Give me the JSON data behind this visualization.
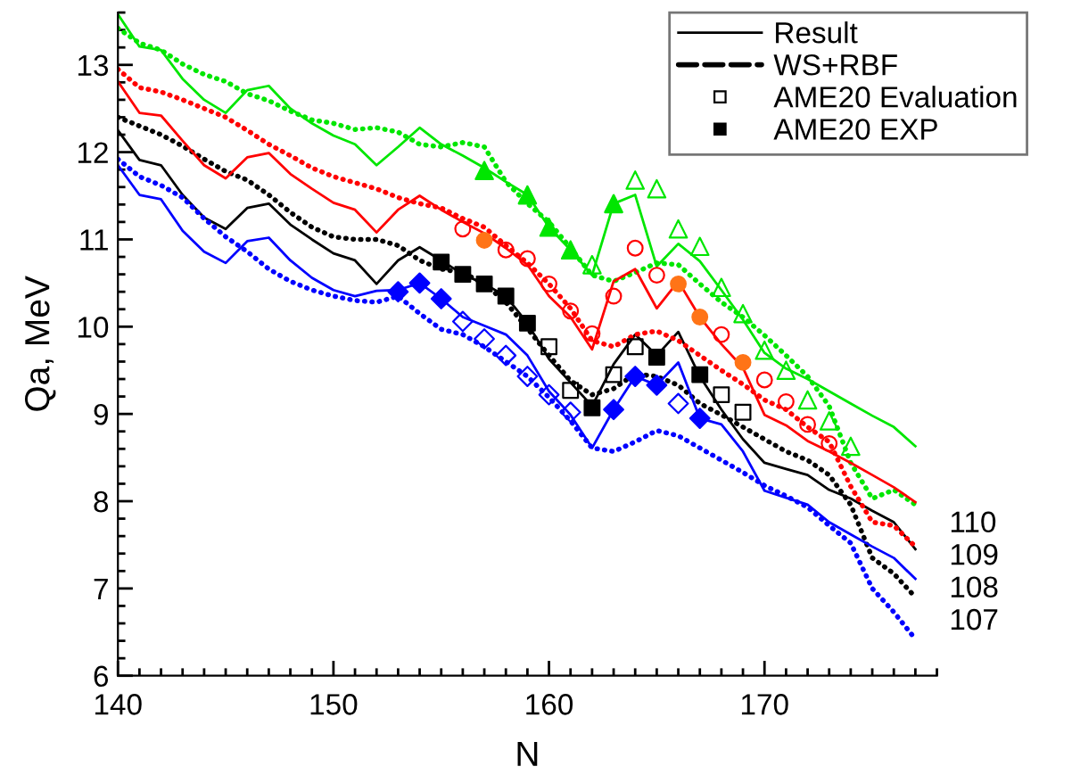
{
  "chart_data": {
    "type": "line",
    "xlabel": "N",
    "ylabel": "Qa, MeV",
    "xlim": [
      140,
      178
    ],
    "ylim": [
      6,
      13.6
    ],
    "xticks": [
      140,
      {
        "value": 141,
        "label": null
      },
      {
        "value": 142,
        "label": null
      },
      {
        "value": 143,
        "label": null
      },
      {
        "value": 144,
        "label": null
      },
      {
        "value": 145,
        "label": null
      },
      {
        "value": 146,
        "label": null
      },
      {
        "value": 147,
        "label": null
      },
      {
        "value": 148,
        "label": null
      },
      {
        "value": 149,
        "label": null
      },
      150,
      {
        "value": 151,
        "label": null
      },
      {
        "value": 152,
        "label": null
      },
      {
        "value": 153,
        "label": null
      },
      {
        "value": 154,
        "label": null
      },
      {
        "value": 155,
        "label": null
      },
      {
        "value": 156,
        "label": null
      },
      {
        "value": 157,
        "label": null
      },
      {
        "value": 158,
        "label": null
      },
      {
        "value": 159,
        "label": null
      },
      160,
      {
        "value": 161,
        "label": null
      },
      {
        "value": 162,
        "label": null
      },
      {
        "value": 163,
        "label": null
      },
      {
        "value": 164,
        "label": null
      },
      {
        "value": 165,
        "label": null
      },
      {
        "value": 166,
        "label": null
      },
      {
        "value": 167,
        "label": null
      },
      {
        "value": 168,
        "label": null
      },
      {
        "value": 169,
        "label": null
      },
      170,
      {
        "value": 171,
        "label": null
      },
      {
        "value": 172,
        "label": null
      },
      {
        "value": 173,
        "label": null
      },
      {
        "value": 174,
        "label": null
      },
      {
        "value": 175,
        "label": null
      },
      {
        "value": 176,
        "label": null
      },
      {
        "value": 177,
        "label": null
      },
      {
        "value": 178,
        "label": null
      }
    ],
    "yticks": [
      6,
      {
        "value": 6.2,
        "label": null
      },
      {
        "value": 6.4,
        "label": null
      },
      {
        "value": 6.6,
        "label": null
      },
      {
        "value": 6.8,
        "label": null
      },
      7,
      {
        "value": 7.2,
        "label": null
      },
      {
        "value": 7.4,
        "label": null
      },
      {
        "value": 7.6,
        "label": null
      },
      {
        "value": 7.8,
        "label": null
      },
      8,
      {
        "value": 8.2,
        "label": null
      },
      {
        "value": 8.4,
        "label": null
      },
      {
        "value": 8.6,
        "label": null
      },
      {
        "value": 8.8,
        "label": null
      },
      9,
      {
        "value": 9.2,
        "label": null
      },
      {
        "value": 9.4,
        "label": null
      },
      {
        "value": 9.6,
        "label": null
      },
      {
        "value": 9.8,
        "label": null
      },
      10,
      {
        "value": 10.2,
        "label": null
      },
      {
        "value": 10.4,
        "label": null
      },
      {
        "value": 10.6,
        "label": null
      },
      {
        "value": 10.8,
        "label": null
      },
      11,
      {
        "value": 11.2,
        "label": null
      },
      {
        "value": 11.4,
        "label": null
      },
      {
        "value": 11.6,
        "label": null
      },
      {
        "value": 11.8,
        "label": null
      },
      12,
      {
        "value": 12.2,
        "label": null
      },
      {
        "value": 12.4,
        "label": null
      },
      {
        "value": 12.6,
        "label": null
      },
      {
        "value": 12.8,
        "label": null
      },
      13,
      {
        "value": 13.2,
        "label": null
      },
      {
        "value": 13.4,
        "label": null
      },
      {
        "value": 13.6,
        "label": null
      }
    ],
    "grid": false,
    "legend": "top right",
    "series": [
      {
        "name": "Result",
        "line_style": "solid",
        "marker": "none",
        "color": "#000000",
        "x": [
          140,
          141,
          142,
          143,
          144,
          145,
          146,
          147,
          148,
          149,
          150,
          151,
          152,
          153,
          154,
          155,
          156,
          157,
          158,
          159,
          160,
          161,
          162,
          163,
          164,
          165,
          166,
          167,
          168,
          169,
          170,
          171,
          172,
          173,
          174,
          175,
          176,
          177
        ],
        "values": [
          12.25,
          11.91,
          11.85,
          11.51,
          11.25,
          11.12,
          11.36,
          11.41,
          11.17,
          11.0,
          10.84,
          10.76,
          10.49,
          10.76,
          10.91,
          10.76,
          10.6,
          10.49,
          10.35,
          10.04,
          9.63,
          9.36,
          9.09,
          9.57,
          9.91,
          9.67,
          9.94,
          9.43,
          9.05,
          8.71,
          8.44,
          8.37,
          8.3,
          8.13,
          8.03,
          7.89,
          7.76,
          7.45
        ]
      },
      {
        "name": "WS+RBF",
        "line_style": "dotted",
        "marker": "none",
        "color": "#000000",
        "x": [
          140,
          141,
          142,
          143,
          144,
          145,
          146,
          147,
          148,
          149,
          150,
          151,
          152,
          153,
          154,
          155,
          156,
          157,
          158,
          159,
          160,
          161,
          162,
          163,
          164,
          165,
          166,
          167,
          168,
          169,
          170,
          171,
          172,
          173,
          174,
          175,
          176,
          177
        ],
        "values": [
          12.4,
          12.3,
          12.2,
          12.07,
          11.92,
          11.78,
          11.68,
          11.51,
          11.31,
          11.14,
          11.03,
          11.0,
          11.0,
          10.93,
          10.76,
          10.66,
          10.62,
          10.49,
          10.28,
          9.98,
          9.67,
          9.38,
          9.22,
          9.29,
          9.46,
          9.43,
          9.33,
          9.12,
          8.99,
          8.85,
          8.71,
          8.57,
          8.47,
          8.3,
          7.96,
          7.35,
          7.17,
          6.9
        ]
      },
      {
        "name": "AME20 Evaluation",
        "type": "scatter",
        "marker": "square",
        "color": "#000000",
        "x": [
          160,
          161,
          163,
          164,
          168,
          169
        ],
        "values": [
          9.77,
          9.27,
          9.45,
          9.77,
          9.22,
          9.02
        ]
      },
      {
        "name": "AME20 EXP",
        "type": "scatter",
        "marker": "square",
        "color": "#000000",
        "x": [
          155,
          156,
          157,
          158,
          159,
          162,
          165,
          167
        ],
        "values": [
          10.74,
          10.6,
          10.49,
          10.35,
          10.04,
          9.07,
          9.65,
          9.45
        ]
      },
      {
        "line_style": "solid",
        "marker": "none",
        "color": "#00e600",
        "x": [
          140,
          141,
          142,
          143,
          144,
          145,
          146,
          147,
          148,
          149,
          150,
          151,
          152,
          153,
          154,
          155,
          156,
          157,
          158,
          159,
          160,
          161,
          162,
          163,
          164,
          165,
          166,
          167,
          168,
          169,
          170,
          171,
          172,
          173,
          174,
          175,
          176,
          177
        ],
        "values": [
          13.58,
          13.21,
          13.17,
          12.84,
          12.6,
          12.45,
          12.71,
          12.76,
          12.5,
          12.33,
          12.19,
          12.09,
          11.85,
          12.06,
          12.28,
          12.09,
          11.96,
          11.82,
          11.66,
          11.51,
          11.14,
          10.88,
          10.59,
          11.41,
          11.51,
          10.69,
          10.95,
          10.75,
          10.42,
          10.08,
          9.7,
          9.52,
          9.4,
          9.26,
          9.12,
          8.98,
          8.85,
          8.63
        ]
      },
      {
        "line_style": "dotted",
        "marker": "none",
        "color": "#00e600",
        "x": [
          140,
          141,
          142,
          143,
          144,
          145,
          146,
          147,
          148,
          149,
          150,
          151,
          152,
          153,
          154,
          155,
          156,
          157,
          158,
          159,
          160,
          161,
          162,
          163,
          164,
          165,
          166,
          167,
          168,
          169,
          170,
          171,
          172,
          173,
          174,
          175,
          176,
          177
        ],
        "values": [
          13.42,
          13.25,
          13.17,
          13.01,
          12.89,
          12.81,
          12.67,
          12.59,
          12.47,
          12.37,
          12.33,
          12.26,
          12.28,
          12.23,
          12.09,
          12.06,
          12.11,
          12.06,
          11.66,
          11.41,
          11.2,
          10.9,
          10.59,
          10.52,
          10.62,
          10.73,
          10.71,
          10.49,
          10.28,
          10.11,
          9.9,
          9.67,
          9.43,
          9.09,
          8.44,
          8.03,
          8.13,
          7.96
        ]
      },
      {
        "type": "scatter",
        "marker": "triangle",
        "color": "#00e600",
        "x": [
          162,
          164,
          165,
          166,
          167,
          168,
          169,
          170,
          171,
          172,
          173,
          174
        ],
        "values": [
          10.71,
          11.68,
          11.58,
          11.12,
          10.92,
          10.45,
          10.15,
          9.73,
          9.5,
          9.16,
          8.92,
          8.63
        ]
      },
      {
        "type": "scatter",
        "marker": "triangle",
        "color": "#00e600",
        "x": [
          157,
          159,
          160,
          161,
          163
        ],
        "values": [
          11.79,
          11.51,
          11.14,
          10.88,
          11.41
        ]
      },
      {
        "line_style": "solid",
        "marker": "none",
        "color": "#ff0000",
        "x": [
          140,
          141,
          142,
          143,
          144,
          145,
          146,
          147,
          148,
          149,
          150,
          151,
          152,
          153,
          154,
          155,
          156,
          157,
          158,
          159,
          160,
          161,
          162,
          163,
          164,
          165,
          166,
          167,
          168,
          169,
          170,
          171,
          172,
          173,
          174,
          175,
          176,
          177
        ],
        "values": [
          12.81,
          12.45,
          12.42,
          12.13,
          11.85,
          11.7,
          11.94,
          11.99,
          11.75,
          11.58,
          11.42,
          11.34,
          11.08,
          11.34,
          11.5,
          11.34,
          11.2,
          11.07,
          10.9,
          10.71,
          10.35,
          10.11,
          9.74,
          10.52,
          10.66,
          10.21,
          10.52,
          10.11,
          9.8,
          9.53,
          8.99,
          8.87,
          8.69,
          8.57,
          8.44,
          8.3,
          8.16,
          7.99
        ]
      },
      {
        "line_style": "dotted",
        "marker": "none",
        "color": "#ff0000",
        "x": [
          140,
          141,
          142,
          143,
          144,
          145,
          146,
          147,
          148,
          149,
          150,
          151,
          152,
          153,
          154,
          155,
          156,
          157,
          158,
          159,
          160,
          161,
          162,
          163,
          164,
          165,
          166,
          167,
          168,
          169,
          170,
          171,
          172,
          173,
          174,
          175,
          176,
          177
        ],
        "values": [
          12.95,
          12.74,
          12.69,
          12.6,
          12.5,
          12.4,
          12.25,
          12.09,
          11.96,
          11.82,
          11.72,
          11.65,
          11.58,
          11.48,
          11.41,
          11.36,
          11.24,
          11.14,
          10.93,
          10.73,
          10.49,
          10.21,
          9.84,
          9.77,
          9.91,
          9.95,
          9.84,
          9.67,
          9.5,
          9.34,
          9.16,
          9.05,
          8.85,
          8.68,
          8.17,
          7.76,
          7.72,
          7.48
        ]
      },
      {
        "type": "scatter",
        "marker": "circle",
        "color": "#ff0000",
        "x": [
          156,
          158,
          159,
          160,
          161,
          162,
          163,
          164,
          165,
          168,
          170,
          171,
          172,
          173
        ],
        "values": [
          11.12,
          10.88,
          10.78,
          10.49,
          10.18,
          9.92,
          10.35,
          10.9,
          10.59,
          9.91,
          9.39,
          9.14,
          8.88,
          8.66
        ]
      },
      {
        "type": "scatter",
        "marker": "circle",
        "color": "#ff7417",
        "x": [
          157,
          166,
          167,
          169
        ],
        "values": [
          10.99,
          10.49,
          10.11,
          9.59
        ]
      },
      {
        "line_style": "solid",
        "marker": "none",
        "color": "#0000ff",
        "x": [
          140,
          141,
          142,
          143,
          144,
          145,
          146,
          147,
          148,
          149,
          150,
          151,
          152,
          153,
          154,
          155,
          156,
          157,
          158,
          159,
          160,
          161,
          162,
          163,
          164,
          165,
          166,
          167,
          168,
          169,
          170,
          171,
          172,
          173,
          174,
          175,
          176,
          177
        ],
        "values": [
          11.85,
          11.51,
          11.46,
          11.1,
          10.86,
          10.73,
          10.98,
          11.02,
          10.76,
          10.56,
          10.42,
          10.35,
          10.41,
          10.42,
          10.5,
          10.32,
          10.11,
          10.01,
          9.91,
          9.67,
          9.26,
          8.99,
          8.61,
          9.05,
          9.43,
          9.33,
          9.59,
          8.95,
          8.88,
          8.57,
          8.12,
          8.04,
          7.96,
          7.76,
          7.62,
          7.48,
          7.35,
          7.11
        ]
      },
      {
        "line_style": "dotted",
        "marker": "none",
        "color": "#0000ff",
        "x": [
          140,
          141,
          142,
          143,
          144,
          145,
          146,
          147,
          148,
          149,
          150,
          151,
          152,
          153,
          154,
          155,
          156,
          157,
          158,
          159,
          160,
          161,
          162,
          163,
          164,
          165,
          166,
          167,
          168,
          169,
          170,
          171,
          172,
          173,
          174,
          175,
          176,
          177
        ],
        "values": [
          11.92,
          11.72,
          11.62,
          11.48,
          11.24,
          11.03,
          10.86,
          10.66,
          10.52,
          10.42,
          10.35,
          10.3,
          10.28,
          10.35,
          10.15,
          9.97,
          9.91,
          9.77,
          9.6,
          9.43,
          9.19,
          8.92,
          8.61,
          8.57,
          8.68,
          8.81,
          8.75,
          8.61,
          8.47,
          8.33,
          8.18,
          8.06,
          7.93,
          7.72,
          7.52,
          7.0,
          6.73,
          6.42
        ]
      },
      {
        "type": "scatter",
        "marker": "diamond",
        "color": "#0000ff",
        "x": [
          156,
          157,
          158,
          159,
          160,
          161,
          166
        ],
        "values": [
          10.06,
          9.86,
          9.67,
          9.43,
          9.22,
          9.02,
          9.12
        ]
      },
      {
        "type": "scatter",
        "marker": "diamond",
        "color": "#0000ff",
        "x": [
          153,
          154,
          155,
          163,
          164,
          165,
          167
        ],
        "values": [
          10.4,
          10.5,
          10.32,
          9.05,
          9.43,
          9.33,
          8.95
        ]
      }
    ],
    "annotations": [
      "110",
      "109",
      "108",
      "107"
    ]
  }
}
